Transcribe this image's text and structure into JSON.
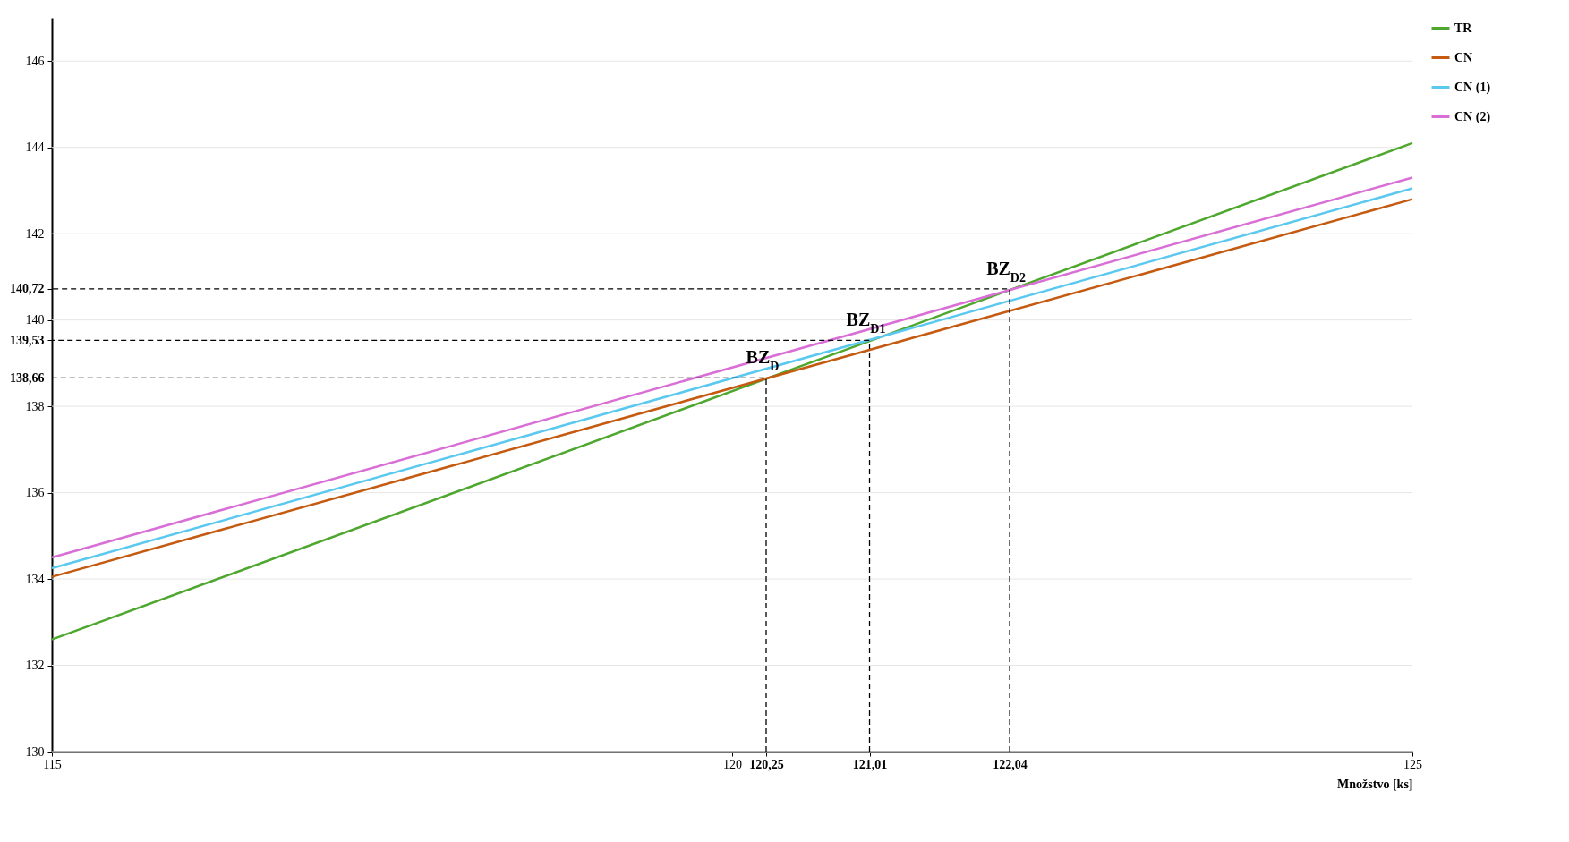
{
  "chart_data": {
    "type": "line",
    "xlabel": "Množstvo [ks]",
    "xlim": [
      115,
      125
    ],
    "xticks": [
      115,
      120,
      {
        "value": 120.25,
        "label": "120,25"
      },
      {
        "value": 121.01,
        "label": "121,01"
      },
      {
        "value": 122.04,
        "label": "122,04"
      },
      125
    ],
    "ylim": [
      130,
      147
    ],
    "yticks": [
      130,
      132,
      134,
      136,
      138,
      {
        "value": 138.66,
        "label": "138,66"
      },
      {
        "value": 139.53,
        "label": "139,53"
      },
      140,
      {
        "value": 140.72,
        "label": "140,72"
      },
      142,
      144,
      146
    ],
    "grid": "y",
    "legend": "right",
    "line_style": "solid",
    "series": [
      {
        "name": "TR",
        "color": "#4ea72e",
        "x": [
          115,
          125
        ],
        "values": [
          132.6,
          144.1
        ]
      },
      {
        "name": "CN",
        "color": "#c55a11",
        "x": [
          115,
          125
        ],
        "values": [
          134.05,
          142.8
        ]
      },
      {
        "name": "CN (1)",
        "color": "#5bc8f0",
        "x": [
          115,
          125
        ],
        "values": [
          134.25,
          143.05
        ]
      },
      {
        "name": "CN (2)",
        "color": "#d96fd6",
        "x": [
          115,
          125
        ],
        "values": [
          134.5,
          143.3
        ]
      },
      {
        "color": "#000000",
        "line_style": "dashed",
        "x": [
          120.25,
          120.25,
          115
        ],
        "values": [
          130,
          138.66,
          138.66
        ]
      },
      {
        "color": "#000000",
        "line_style": "dashed",
        "x": [
          121.01,
          121.01,
          115
        ],
        "values": [
          130,
          139.53,
          139.53
        ]
      },
      {
        "color": "#000000",
        "line_style": "dashed",
        "x": [
          122.04,
          122.04,
          115
        ],
        "values": [
          130,
          140.72,
          140.72
        ]
      }
    ],
    "annotations": [
      {
        "text": "BZ$_{D}$",
        "x": 120.25,
        "y": 138.66
      },
      {
        "text": "BZ$_{D1}$",
        "x": 121.01,
        "y": 139.53
      },
      {
        "text": "BZ$_{D2}$",
        "x": 122.04,
        "y": 140.72
      }
    ]
  }
}
